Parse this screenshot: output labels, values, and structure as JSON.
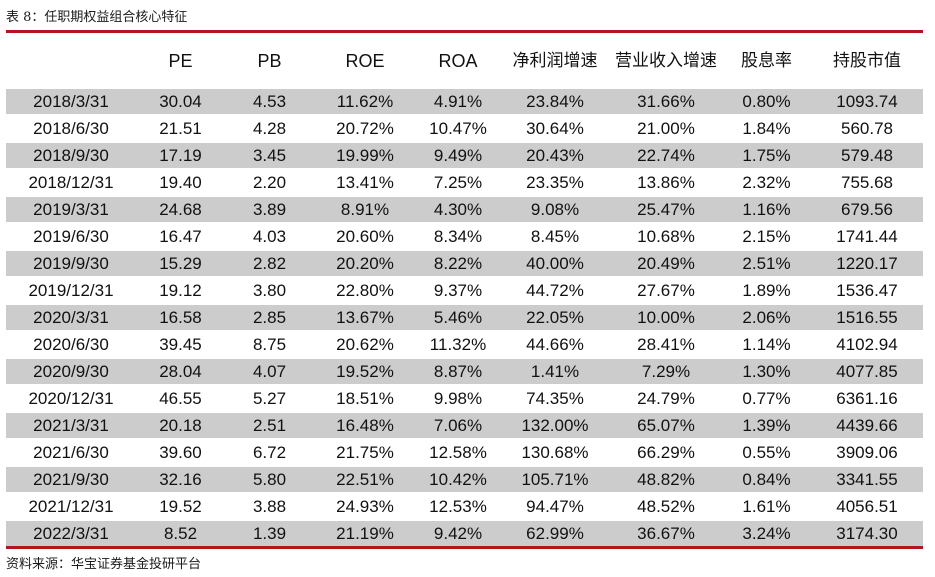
{
  "caption": "表 8：任职期权益组合核心特征",
  "source": "资料来源：华宝证券基金投研平台",
  "colors": {
    "rule": "#b3151c",
    "stripe": "#cccccc"
  },
  "columns": [
    "",
    "PE",
    "PB",
    "ROE",
    "ROA",
    "净利润增速",
    "营业收入增速",
    "股息率",
    "持股市值"
  ],
  "rows": [
    [
      "2018/3/31",
      "30.04",
      "4.53",
      "11.62%",
      "4.91%",
      "23.84%",
      "31.66%",
      "0.80%",
      "1093.74"
    ],
    [
      "2018/6/30",
      "21.51",
      "4.28",
      "20.72%",
      "10.47%",
      "30.64%",
      "21.00%",
      "1.84%",
      "560.78"
    ],
    [
      "2018/9/30",
      "17.19",
      "3.45",
      "19.99%",
      "9.49%",
      "20.43%",
      "22.74%",
      "1.75%",
      "579.48"
    ],
    [
      "2018/12/31",
      "19.40",
      "2.20",
      "13.41%",
      "7.25%",
      "23.35%",
      "13.86%",
      "2.32%",
      "755.68"
    ],
    [
      "2019/3/31",
      "24.68",
      "3.89",
      "8.91%",
      "4.30%",
      "9.08%",
      "25.47%",
      "1.16%",
      "679.56"
    ],
    [
      "2019/6/30",
      "16.47",
      "4.03",
      "20.60%",
      "8.34%",
      "8.45%",
      "10.68%",
      "2.15%",
      "1741.44"
    ],
    [
      "2019/9/30",
      "15.29",
      "2.82",
      "20.20%",
      "8.22%",
      "40.00%",
      "20.49%",
      "2.51%",
      "1220.17"
    ],
    [
      "2019/12/31",
      "19.12",
      "3.80",
      "22.80%",
      "9.37%",
      "44.72%",
      "27.67%",
      "1.89%",
      "1536.47"
    ],
    [
      "2020/3/31",
      "16.58",
      "2.85",
      "13.67%",
      "5.46%",
      "22.05%",
      "10.00%",
      "2.06%",
      "1516.55"
    ],
    [
      "2020/6/30",
      "39.45",
      "8.75",
      "20.62%",
      "11.32%",
      "44.66%",
      "28.41%",
      "1.14%",
      "4102.94"
    ],
    [
      "2020/9/30",
      "28.04",
      "4.07",
      "19.52%",
      "8.87%",
      "1.41%",
      "7.29%",
      "1.30%",
      "4077.85"
    ],
    [
      "2020/12/31",
      "46.55",
      "5.27",
      "18.51%",
      "9.98%",
      "74.35%",
      "24.79%",
      "0.77%",
      "6361.16"
    ],
    [
      "2021/3/31",
      "20.18",
      "2.51",
      "16.48%",
      "7.06%",
      "132.00%",
      "65.07%",
      "1.39%",
      "4439.66"
    ],
    [
      "2021/6/30",
      "39.60",
      "6.72",
      "21.75%",
      "12.58%",
      "130.68%",
      "66.29%",
      "0.55%",
      "3909.06"
    ],
    [
      "2021/9/30",
      "32.16",
      "5.80",
      "22.51%",
      "10.42%",
      "105.71%",
      "48.82%",
      "0.84%",
      "3341.55"
    ],
    [
      "2021/12/31",
      "19.52",
      "3.88",
      "24.93%",
      "12.53%",
      "94.47%",
      "48.52%",
      "1.61%",
      "4056.51"
    ],
    [
      "2022/3/31",
      "8.52",
      "1.39",
      "21.19%",
      "9.42%",
      "62.99%",
      "36.67%",
      "3.24%",
      "3174.30"
    ]
  ]
}
